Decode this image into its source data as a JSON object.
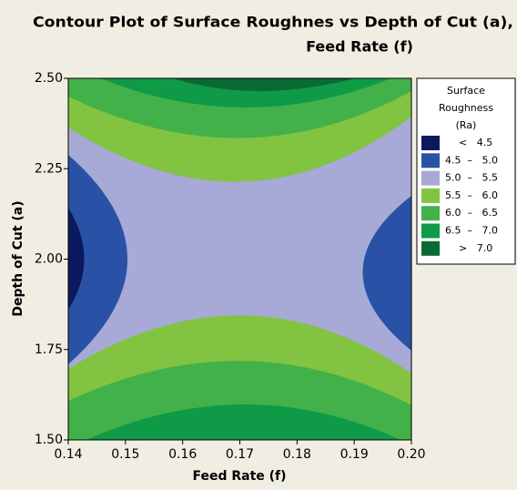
{
  "chart_data": {
    "type": "contour",
    "title_lines": [
      "Contour Plot of Surface Roughnes vs Depth of Cut (a),",
      "Feed Rate (f)"
    ],
    "x_label": "Feed Rate (f)",
    "y_label": "Depth of Cut (a)",
    "xlim": [
      0.14,
      0.2
    ],
    "xticks": [
      0.14,
      0.15,
      0.16,
      0.17,
      0.18,
      0.19,
      {
        "value": 0.2,
        "label": "0.20"
      }
    ],
    "ylim": [
      1.5,
      2.5
    ],
    "yticks": [
      {
        "value": 1.5,
        "label": "1.50"
      },
      {
        "value": 1.75,
        "label": "1.75"
      },
      {
        "value": 2.0,
        "label": "2.00"
      },
      {
        "value": 2.25,
        "label": "2.25"
      },
      {
        "value": 2.5,
        "label": "2.50"
      }
    ],
    "legend_title": [
      "Surface",
      "Roughness",
      "(Ra)"
    ],
    "series": [
      {
        "name": "<   4.5",
        "color": "#0b1a5e"
      },
      {
        "name": "4.5  –   5.0",
        "color": "#2952a6"
      },
      {
        "name": "5.0  –   5.5",
        "color": "#a7a9d6"
      },
      {
        "name": "5.5  –   6.0",
        "color": "#82c341"
      },
      {
        "name": "6.0  –   6.5",
        "color": "#43b14a"
      },
      {
        "name": "6.5  –   7.0",
        "color": "#0f9a48"
      },
      {
        "name": ">   7.0",
        "color": "#0b6a33"
      }
    ]
  }
}
